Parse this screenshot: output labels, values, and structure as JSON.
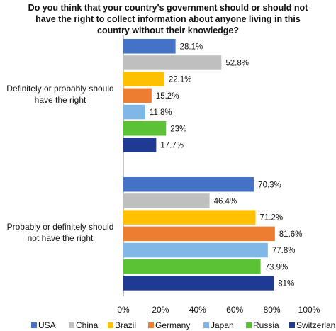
{
  "chart_data": {
    "type": "bar",
    "orientation": "horizontal",
    "title": [
      "Do you think that your country's government should or should not",
      "have the right to collect information about anyone living in this",
      "country without their knowledge?"
    ],
    "categories": [
      [
        "Definitely or probably should",
        "have the right"
      ],
      [
        "Probably or definitely should",
        "not have the right"
      ]
    ],
    "series": [
      {
        "name": "USA",
        "color": "#4472C4",
        "values": [
          28.1,
          70.3
        ],
        "labels": [
          "28.1%",
          "70.3%"
        ]
      },
      {
        "name": "China",
        "color": "#BFBFBF",
        "values": [
          52.8,
          46.4
        ],
        "labels": [
          "52.8%",
          "46.4%"
        ]
      },
      {
        "name": "Brazil",
        "color": "#FFC000",
        "values": [
          22.1,
          71.2
        ],
        "labels": [
          "22.1%",
          "71.2%"
        ]
      },
      {
        "name": "Germany",
        "color": "#ED7D31",
        "values": [
          15.2,
          81.6
        ],
        "labels": [
          "15.2%",
          "81.6%"
        ]
      },
      {
        "name": "Japan",
        "color": "#7FB8E6",
        "values": [
          11.8,
          77.8
        ],
        "labels": [
          "11.8%",
          "77.8%"
        ]
      },
      {
        "name": "Russia",
        "color": "#5BC236",
        "values": [
          23,
          73.9
        ],
        "labels": [
          "23%",
          "73.9%"
        ]
      },
      {
        "name": "Switzerland",
        "color": "#1F3A93",
        "values": [
          17.7,
          81
        ],
        "labels": [
          "17.7%",
          "81%"
        ]
      }
    ],
    "xlim": [
      0,
      100
    ],
    "xticks": [
      "0%",
      "20%",
      "40%",
      "60%",
      "80%",
      "100%"
    ],
    "grid": false,
    "legend": "bottom"
  }
}
